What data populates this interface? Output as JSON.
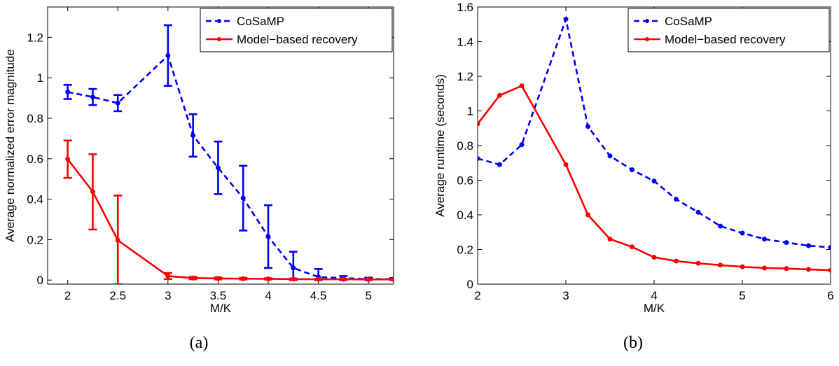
{
  "chart_data": [
    {
      "type": "line",
      "panel_label": "(a)",
      "xlabel": "M/K",
      "ylabel": "Average normalized error magnitude",
      "xlim": [
        1.8,
        5.25
      ],
      "ylim": [
        -0.02,
        1.35
      ],
      "xticks": [
        2,
        2.5,
        3,
        3.5,
        4,
        4.5,
        5
      ],
      "xtick_labels": [
        "2",
        "2.5",
        "3",
        "3.5",
        "4",
        "4.5",
        "5"
      ],
      "yticks": [
        0,
        0.2,
        0.4,
        0.6,
        0.8,
        1,
        1.2
      ],
      "ytick_labels": [
        "0",
        "0.2",
        "0.4",
        "0.6",
        "0.8",
        "1",
        "1.2"
      ],
      "legend_position": "top-right",
      "x": [
        2,
        2.25,
        2.5,
        3,
        3.25,
        3.5,
        3.75,
        4,
        4.25,
        4.5,
        4.75,
        5,
        5.25
      ],
      "series": [
        {
          "name": "CoSaMP",
          "color": "#0000ff",
          "style": "dashed",
          "values": [
            0.93,
            0.905,
            0.875,
            1.11,
            0.715,
            0.555,
            0.405,
            0.215,
            0.06,
            0.015,
            0.01,
            0.005,
            0.005
          ],
          "err_low": [
            0.895,
            0.865,
            0.835,
            0.96,
            0.61,
            0.425,
            0.245,
            0.06,
            0.0,
            0.0,
            0.0,
            0.0,
            0.0
          ],
          "err_high": [
            0.965,
            0.945,
            0.915,
            1.26,
            0.82,
            0.685,
            0.565,
            0.37,
            0.14,
            0.055,
            0.02,
            0.012,
            0.01
          ]
        },
        {
          "name": "Model−based recovery",
          "color": "#ff0000",
          "style": "solid",
          "values": [
            0.598,
            0.437,
            0.197,
            0.02,
            0.01,
            0.008,
            0.007,
            0.006,
            0.005,
            0.004,
            0.004,
            0.003,
            0.003
          ],
          "err_low": [
            0.505,
            0.25,
            -0.02,
            0.005,
            0.004,
            0.003,
            0.003,
            0.003,
            0.002,
            0.002,
            0.002,
            0.001,
            0.001
          ],
          "err_high": [
            0.69,
            0.622,
            0.418,
            0.035,
            0.016,
            0.013,
            0.011,
            0.009,
            0.008,
            0.006,
            0.006,
            0.005,
            0.005
          ]
        }
      ]
    },
    {
      "type": "line",
      "panel_label": "(b)",
      "xlabel": "M/K",
      "ylabel": "Average runtime (seconds)",
      "xlim": [
        2,
        6
      ],
      "ylim": [
        0,
        1.6
      ],
      "xticks": [
        2,
        3,
        4,
        5,
        6
      ],
      "xtick_labels": [
        "2",
        "3",
        "4",
        "5",
        "6"
      ],
      "yticks": [
        0,
        0.2,
        0.4,
        0.6,
        0.8,
        1,
        1.2,
        1.4,
        1.6
      ],
      "ytick_labels": [
        "0",
        "0.2",
        "0.4",
        "0.6",
        "0.8",
        "1",
        "1.2",
        "1.4",
        "1.6"
      ],
      "legend_position": "top-right",
      "x": [
        2,
        2.25,
        2.5,
        3,
        3.25,
        3.5,
        3.75,
        4,
        4.25,
        4.5,
        4.75,
        5,
        5.25,
        5.5,
        5.75,
        6
      ],
      "series": [
        {
          "name": "CoSaMP",
          "color": "#0000ff",
          "style": "dashed",
          "values": [
            0.725,
            0.69,
            0.805,
            1.53,
            0.91,
            0.74,
            0.66,
            0.595,
            0.49,
            0.415,
            0.335,
            0.295,
            0.26,
            0.24,
            0.222,
            0.212
          ]
        },
        {
          "name": "Model−based recovery",
          "color": "#ff0000",
          "style": "solid",
          "values": [
            0.925,
            1.09,
            1.145,
            0.69,
            0.4,
            0.26,
            0.215,
            0.155,
            0.133,
            0.12,
            0.11,
            0.1,
            0.093,
            0.09,
            0.085,
            0.08
          ]
        }
      ]
    }
  ]
}
